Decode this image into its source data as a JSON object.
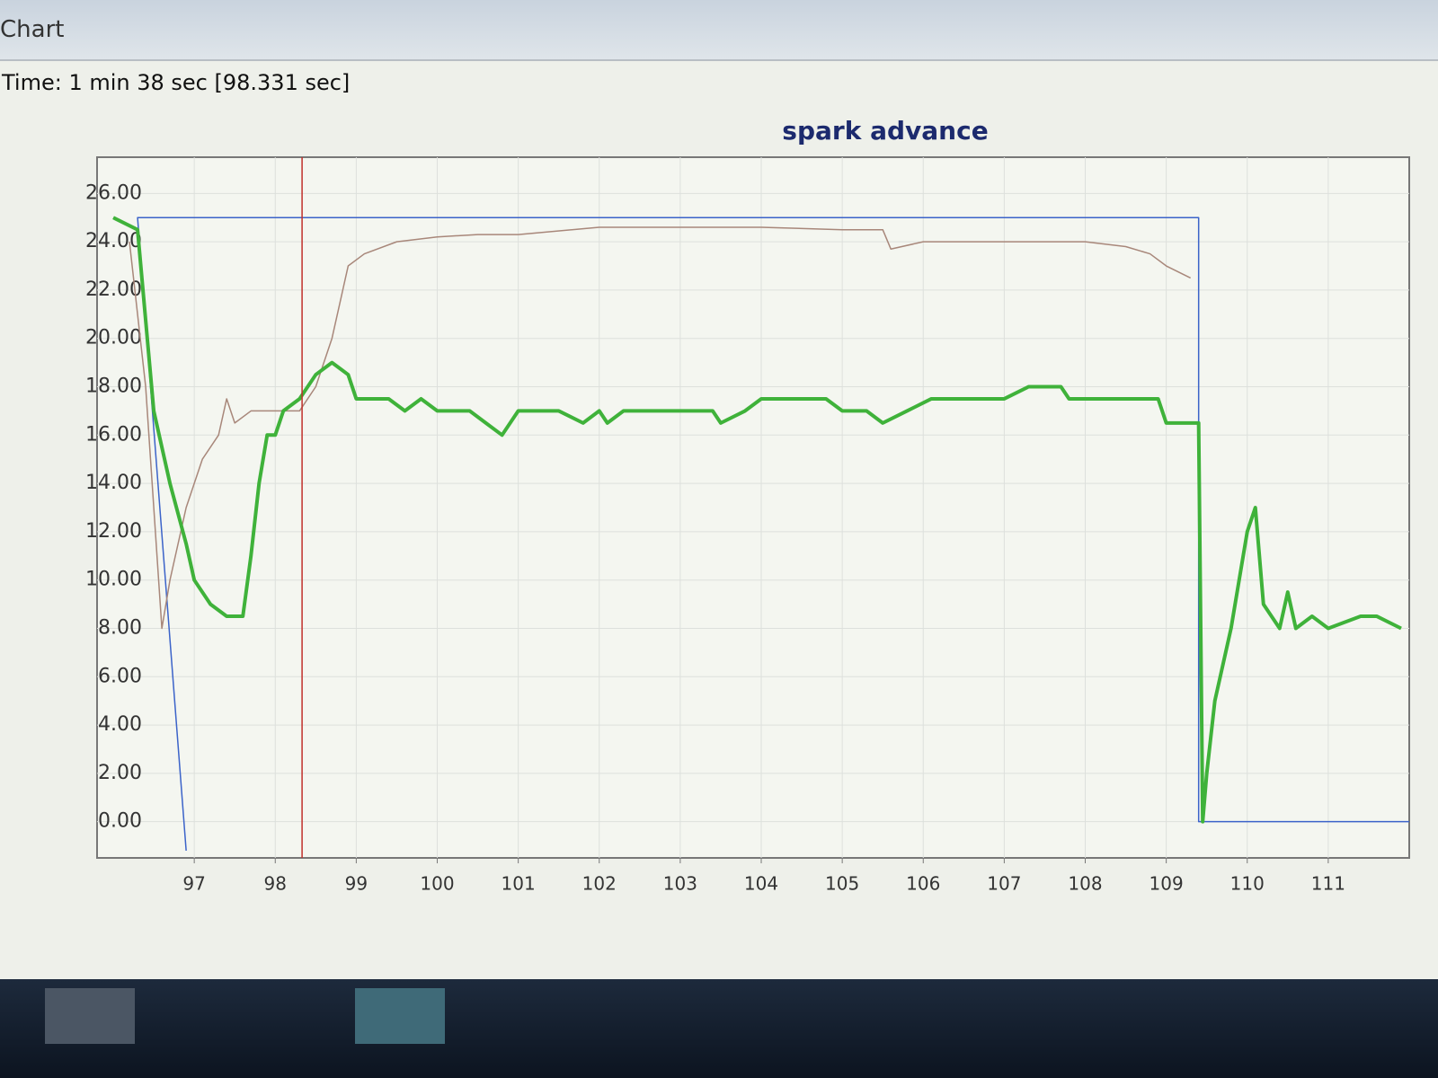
{
  "window_title": "Chart",
  "time_label": "Time: 1 min 38 sec [98.331 sec]",
  "chart_data": {
    "type": "line",
    "title": "spark advance",
    "cursor_x": 98.331,
    "cursor_color": "#c0302a",
    "xlim": [
      95.8,
      112
    ],
    "ylim": [
      -1.5,
      27.5
    ],
    "xticks": [
      97,
      98,
      99,
      100,
      101,
      102,
      103,
      104,
      105,
      106,
      107,
      108,
      109,
      110,
      111
    ],
    "yticks": [
      {
        "value": 0,
        "label": "0.00"
      },
      {
        "value": 2,
        "label": "2.00"
      },
      {
        "value": 4,
        "label": "4.00"
      },
      {
        "value": 6,
        "label": "6.00"
      },
      {
        "value": 8,
        "label": "8.00"
      },
      {
        "value": 10,
        "label": "10.00"
      },
      {
        "value": 12,
        "label": "12.00"
      },
      {
        "value": 14,
        "label": "14.00"
      },
      {
        "value": 16,
        "label": "16.00"
      },
      {
        "value": 18,
        "label": "18.00"
      },
      {
        "value": 20,
        "label": "20.00"
      },
      {
        "value": 22,
        "label": "22.00"
      },
      {
        "value": 24,
        "label": "24.00"
      },
      {
        "value": 26,
        "label": "26.00"
      }
    ],
    "grid": true,
    "series": [
      {
        "color": "#3b63c9",
        "width": 1.5,
        "x": [
          96.9,
          96.3,
          109.4,
          109.4,
          112
        ],
        "values": [
          -1.2,
          25,
          25,
          0,
          0
        ]
      },
      {
        "color": "#a8877a",
        "width": 1.5,
        "x": [
          96.2,
          96.4,
          96.6,
          96.7,
          96.9,
          97.1,
          97.3,
          97.4,
          97.5,
          97.7,
          98.0,
          98.3,
          98.5,
          98.7,
          98.9,
          99.1,
          99.5,
          100.0,
          100.5,
          101.0,
          102.0,
          103.0,
          104.0,
          105.0,
          105.5,
          105.6,
          106.0,
          107.0,
          108.0,
          108.5,
          108.8,
          109.0,
          109.3
        ],
        "values": [
          24,
          18,
          8,
          10,
          13,
          15,
          16,
          17.5,
          16.5,
          17,
          17,
          17,
          18,
          20,
          23,
          23.5,
          24,
          24.2,
          24.3,
          24.3,
          24.6,
          24.6,
          24.6,
          24.5,
          24.5,
          23.7,
          24,
          24,
          24,
          23.8,
          23.5,
          23,
          22.5
        ]
      },
      {
        "color": "#3fb23a",
        "width": 4,
        "x": [
          96.0,
          96.3,
          96.5,
          96.7,
          96.9,
          97.0,
          97.2,
          97.4,
          97.6,
          97.7,
          97.8,
          97.9,
          98.0,
          98.1,
          98.3,
          98.5,
          98.7,
          98.9,
          99.0,
          99.4,
          99.6,
          99.8,
          100.0,
          100.4,
          100.6,
          100.8,
          101.0,
          101.5,
          101.8,
          102.0,
          102.1,
          102.3,
          103.0,
          103.4,
          103.5,
          103.8,
          104.0,
          104.8,
          105.0,
          105.3,
          105.5,
          105.8,
          106.1,
          106.5,
          107.0,
          107.3,
          107.7,
          107.8,
          108.5,
          108.9,
          109.0,
          109.4,
          109.45,
          109.5,
          109.6,
          109.8,
          110.0,
          110.1,
          110.2,
          110.4,
          110.5,
          110.6,
          110.8,
          111.0,
          111.4,
          111.6,
          111.9
        ],
        "values": [
          25,
          24.5,
          17,
          14,
          11.5,
          10,
          9,
          8.5,
          8.5,
          11,
          14,
          16,
          16,
          17,
          17.5,
          18.5,
          19,
          18.5,
          17.5,
          17.5,
          17,
          17.5,
          17,
          17,
          16.5,
          16,
          17,
          17,
          16.5,
          17,
          16.5,
          17,
          17,
          17,
          16.5,
          17,
          17.5,
          17.5,
          17,
          17,
          16.5,
          17,
          17.5,
          17.5,
          17.5,
          18,
          18,
          17.5,
          17.5,
          17.5,
          16.5,
          16.5,
          0,
          2,
          5,
          8,
          12,
          13,
          9,
          8,
          9.5,
          8,
          8.5,
          8,
          8.5,
          8.5,
          8
        ]
      }
    ]
  }
}
